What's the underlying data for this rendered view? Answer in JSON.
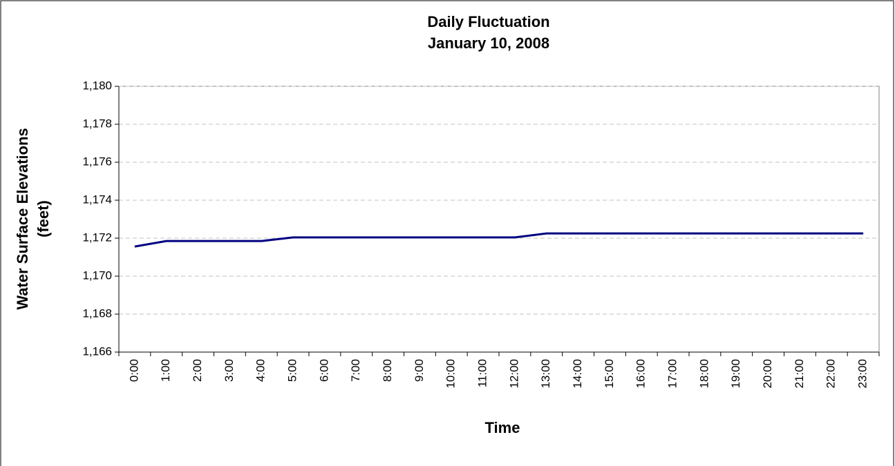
{
  "chart_data": {
    "type": "line",
    "title": "Daily Fluctuation",
    "subtitle": "January 10, 2008",
    "xlabel": "Time",
    "ylabel": [
      "Water Surface Elevations",
      "(feet)"
    ],
    "categories": [
      "0:00",
      "1:00",
      "2:00",
      "3:00",
      "4:00",
      "5:00",
      "6:00",
      "7:00",
      "8:00",
      "9:00",
      "10:00",
      "11:00",
      "12:00",
      "13:00",
      "14:00",
      "15:00",
      "16:00",
      "17:00",
      "18:00",
      "19:00",
      "20:00",
      "21:00",
      "22:00",
      "23:00"
    ],
    "series": [
      {
        "color": "#000080",
        "values": [
          1171.56,
          1171.85,
          1171.85,
          1171.85,
          1171.85,
          1172.04,
          1172.04,
          1172.04,
          1172.04,
          1172.04,
          1172.04,
          1172.04,
          1172.04,
          1172.25,
          1172.25,
          1172.25,
          1172.25,
          1172.25,
          1172.25,
          1172.25,
          1172.25,
          1172.25,
          1172.25,
          1172.25
        ]
      }
    ],
    "ylim": [
      1166,
      1180
    ],
    "yticks": [
      {
        "value": 1166,
        "label": "1,166"
      },
      {
        "value": 1168,
        "label": "1,168"
      },
      {
        "value": 1170,
        "label": "1,170"
      },
      {
        "value": 1172,
        "label": "1,172"
      },
      {
        "value": 1174,
        "label": "1,174"
      },
      {
        "value": 1176,
        "label": "1,176"
      },
      {
        "value": 1178,
        "label": "1,178"
      },
      {
        "value": 1180,
        "label": "1,180"
      }
    ],
    "grid": true
  }
}
